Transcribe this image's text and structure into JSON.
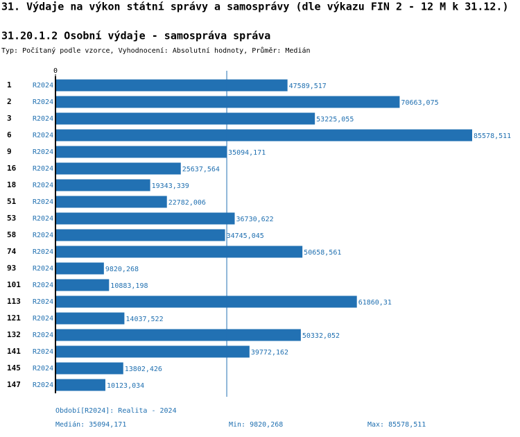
{
  "chart_data": {
    "type": "bar",
    "orientation": "horizontal",
    "title": "31. Výdaje na výkon státní správy a samosprávy (dle výkazu FIN 2 - 12 M k 31.12.)",
    "subtitle": "31.20.1.2 Osobní výdaje - samospráva správa",
    "note": "Typ: Počítaný podle vzorce, Vyhodnocení: Absolutní hodnoty, Průměr: Medián",
    "categories": [
      "1",
      "2",
      "3",
      "6",
      "9",
      "16",
      "18",
      "51",
      "53",
      "58",
      "74",
      "93",
      "101",
      "113",
      "121",
      "132",
      "141",
      "145",
      "147"
    ],
    "series": [
      {
        "name": "R2024",
        "color": "#2271b3",
        "values": [
          47589.517,
          70663.075,
          53225.055,
          85578.511,
          35094.171,
          25637.564,
          19343.339,
          22782.006,
          36730.622,
          34745.045,
          50658.561,
          9820.268,
          10883.198,
          61860.31,
          14037.522,
          50332.052,
          39772.162,
          13802.426,
          10123.034
        ],
        "value_labels": [
          "47589,517",
          "70663,075",
          "53225,055",
          "85578,511",
          "35094,171",
          "25637,564",
          "19343,339",
          "22782,006",
          "36730,622",
          "34745,045",
          "50658,561",
          "9820,268",
          "10883,198",
          "61860,31",
          "14037,522",
          "50332,052",
          "39772,162",
          "13802,426",
          "10123,034"
        ]
      }
    ],
    "xlim": [
      0,
      85578.511
    ],
    "xticks": [
      0
    ],
    "median": 35094.171,
    "footer": {
      "period": "Období[R2024]: Realita - 2024",
      "median": "Medián: 35094,171",
      "min": "Min: 9820,268",
      "max": "Max: 85578,511"
    }
  }
}
